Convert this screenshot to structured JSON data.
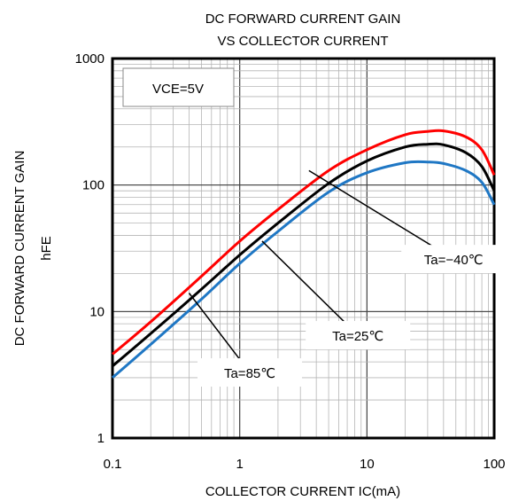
{
  "chart_data": {
    "type": "line",
    "title": "DC FORWARD CURRENT GAIN",
    "subtitle": "VS COLLECTOR CURRENT",
    "xlabel": "COLLECTOR CURRENT  IC(mA)",
    "ylabel": "DC FORWARD CURRENT GAIN",
    "ylabel2": "hFE",
    "x_scale": "log",
    "y_scale": "log",
    "xlim": [
      0.1,
      100
    ],
    "ylim": [
      1,
      1000
    ],
    "grid": true,
    "x_ticks": [
      {
        "value": 0.1,
        "label": "0.1"
      },
      {
        "value": 1,
        "label": "1"
      },
      {
        "value": 10,
        "label": "10"
      },
      {
        "value": 100,
        "label": "100"
      }
    ],
    "y_ticks": [
      {
        "value": 1,
        "label": "1"
      },
      {
        "value": 10,
        "label": "10"
      },
      {
        "value": 100,
        "label": "100"
      },
      {
        "value": 1000,
        "label": "1000"
      }
    ],
    "condition_label": "VCE=5V",
    "series": [
      {
        "name": "Ta=−40℃",
        "color": "#ff0000",
        "x": [
          0.1,
          0.2,
          0.5,
          1,
          2,
          5,
          10,
          20,
          30,
          40,
          60,
          80,
          100
        ],
        "y": [
          4.6,
          8.3,
          19,
          36,
          64,
          130,
          190,
          250,
          265,
          268,
          240,
          190,
          120
        ],
        "label_pos": {
          "x": 48,
          "y": 26
        },
        "pointer_to": {
          "x": 3.5,
          "y": 130
        }
      },
      {
        "name": "Ta=25℃",
        "color": "#000000",
        "x": [
          0.1,
          0.2,
          0.5,
          1,
          2,
          5,
          10,
          20,
          30,
          40,
          60,
          80,
          100
        ],
        "y": [
          3.7,
          6.7,
          15,
          28,
          50,
          103,
          155,
          200,
          210,
          208,
          180,
          140,
          90
        ],
        "label_pos": {
          "x": 8.5,
          "y": 6.5
        },
        "pointer_to": {
          "x": 1.5,
          "y": 36
        }
      },
      {
        "name": "Ta=85℃",
        "color": "#1f77c4",
        "x": [
          0.1,
          0.2,
          0.5,
          1,
          2,
          5,
          10,
          20,
          30,
          40,
          60,
          80,
          100
        ],
        "y": [
          3.0,
          5.5,
          12.5,
          24,
          43,
          88,
          125,
          150,
          152,
          148,
          130,
          105,
          70
        ],
        "label_pos": {
          "x": 1.2,
          "y": 3.3
        },
        "pointer_to": {
          "x": 0.4,
          "y": 14
        }
      }
    ]
  }
}
